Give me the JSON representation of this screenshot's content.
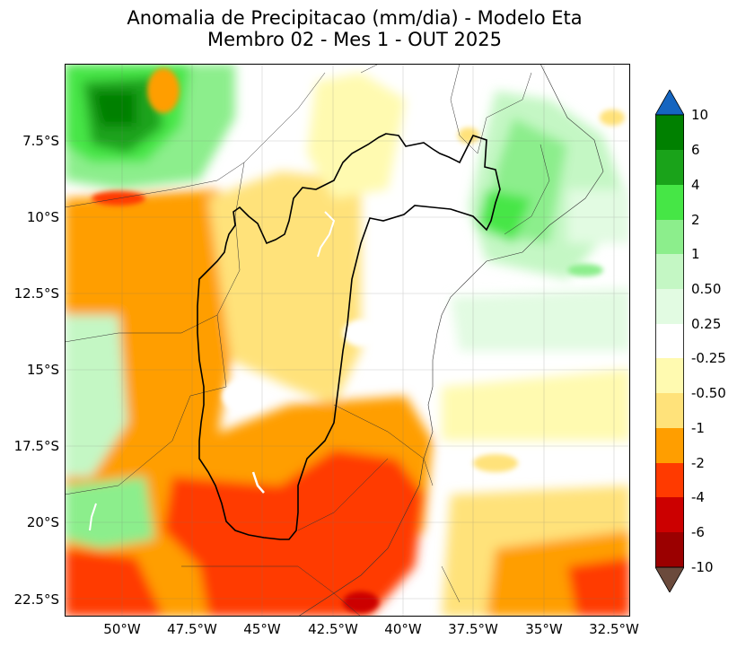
{
  "title": {
    "line1": "Anomalia de Precipitacao (mm/dia) - Modelo Eta",
    "line2": "Membro 02 - Mes 1 - OUT 2025"
  },
  "map": {
    "lat_labels": [
      "7.5°S",
      "10°S",
      "12.5°S",
      "15°S",
      "17.5°S",
      "20°S",
      "22.5°S"
    ],
    "lon_labels": [
      "50°W",
      "47.5°W",
      "45°W",
      "42.5°W",
      "40°W",
      "37.5°W",
      "35°W",
      "32.5°W"
    ]
  },
  "colorbar": {
    "labels": [
      "10",
      "6",
      "4",
      "2",
      "1",
      "0.50",
      "0.25",
      "-0.25",
      "-0.50",
      "-1",
      "-2",
      "-4",
      "-6",
      "-10"
    ],
    "colors": {
      "extend_max": "#1565c0",
      "c6_10": "#008000",
      "c4_6": "#1aa31a",
      "c2_4": "#46e646",
      "c1_2": "#8cee8c",
      "c05_1": "#c4f7c4",
      "c025_05": "#e2fbe2",
      "c_neutral": "#ffffff",
      "cm05_m025": "#fffab0",
      "cm1_m05": "#ffe27a",
      "cm2_m1": "#ff9e00",
      "cm4_m2": "#ff3a00",
      "cm6_m4": "#cc0000",
      "cm10_m6": "#9b0000",
      "extend_min": "#6b4a3c"
    }
  }
}
